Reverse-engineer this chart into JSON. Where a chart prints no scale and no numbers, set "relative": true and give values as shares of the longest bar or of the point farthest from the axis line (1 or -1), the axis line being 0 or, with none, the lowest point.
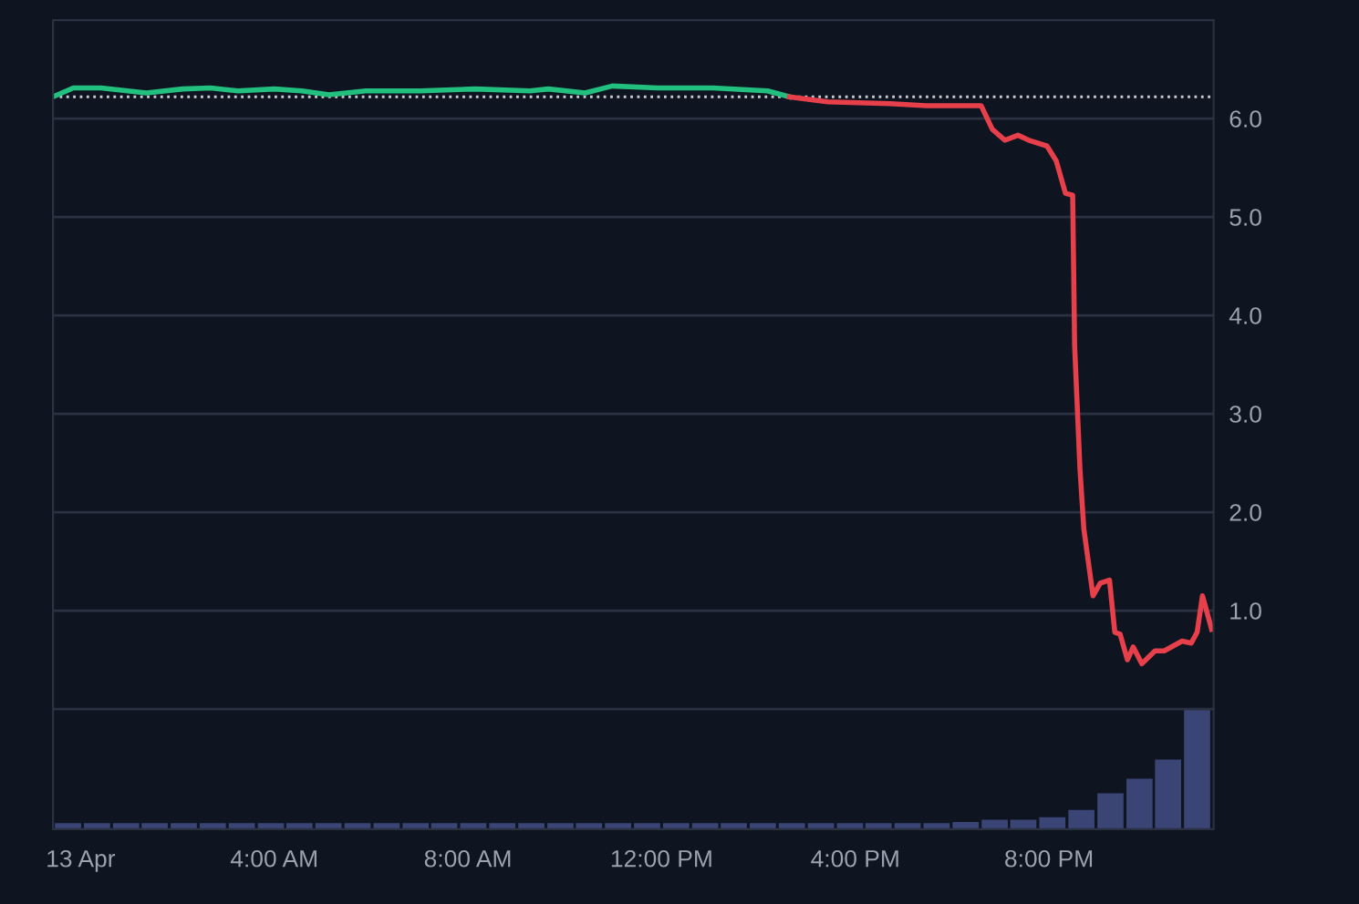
{
  "chart_data": [
    {
      "type": "line",
      "ylim": [
        0,
        7
      ],
      "xlim": [
        -0.57,
        23.4
      ],
      "yticks": [
        {
          "value": 0,
          "label": null
        },
        {
          "value": 1,
          "label": "1.0"
        },
        {
          "value": 2,
          "label": "2.0"
        },
        {
          "value": 3,
          "label": "3.0"
        },
        {
          "value": 4,
          "label": "4.0"
        },
        {
          "value": 5,
          "label": "5.0"
        },
        {
          "value": 6,
          "label": "6.0"
        }
      ],
      "grid": "y",
      "tick_labels": "y",
      "legend": false,
      "ref_lines": [
        {
          "axis": "y",
          "value": 6.22,
          "color": "#c8ccd2",
          "line_style": "dotted"
        }
      ],
      "series": [
        {
          "color": "#22c07f",
          "x": [
            -0.57,
            -0.15,
            0.42,
            1.36,
            2.11,
            2.68,
            3.25,
            4.0,
            4.57,
            5.13,
            5.89,
            7.02,
            8.15,
            9.28,
            9.66,
            10.42,
            10.98,
            11.92,
            13.06,
            14.19,
            14.64
          ],
          "values": [
            6.22,
            6.31,
            6.31,
            6.26,
            6.3,
            6.31,
            6.28,
            6.3,
            6.28,
            6.24,
            6.28,
            6.28,
            6.3,
            6.28,
            6.3,
            6.26,
            6.33,
            6.31,
            6.31,
            6.28,
            6.22
          ]
        },
        {
          "color": "#e8404a",
          "x": [
            14.64,
            15.43,
            16.72,
            17.47,
            18.6,
            18.83,
            19.09,
            19.36,
            19.58,
            19.96,
            20.15,
            20.34,
            20.49,
            20.53,
            20.64,
            20.72,
            20.91,
            21.06,
            21.25,
            21.36,
            21.47,
            21.62,
            21.74,
            21.92,
            22.19,
            22.38,
            22.75,
            22.94,
            23.06,
            23.17,
            23.36
          ],
          "values": [
            6.22,
            6.17,
            6.15,
            6.13,
            6.13,
            5.89,
            5.78,
            5.83,
            5.78,
            5.72,
            5.57,
            5.24,
            5.22,
            3.69,
            2.44,
            1.83,
            1.15,
            1.28,
            1.31,
            0.78,
            0.76,
            0.5,
            0.63,
            0.46,
            0.59,
            0.59,
            0.69,
            0.67,
            0.78,
            1.15,
            0.81
          ]
        }
      ]
    },
    {
      "type": "bar",
      "relative": true,
      "xlim": [
        -0.57,
        23.4
      ],
      "tick_labels": "x",
      "grid": false,
      "xticks": [
        {
          "value": 0,
          "label": "13 Apr"
        },
        {
          "value": 4,
          "label": "4:00 AM"
        },
        {
          "value": 8,
          "label": "8:00 AM"
        },
        {
          "value": 12,
          "label": "12:00 PM"
        },
        {
          "value": 16,
          "label": "4:00 PM"
        },
        {
          "value": 20,
          "label": "8:00 PM"
        }
      ],
      "series": [
        {
          "color": "#3a4575",
          "x": [
            -0.26,
            0.34,
            0.94,
            1.53,
            2.13,
            2.73,
            3.33,
            3.93,
            4.52,
            5.12,
            5.72,
            6.32,
            6.92,
            7.51,
            8.11,
            8.71,
            9.31,
            9.91,
            10.5,
            11.1,
            11.7,
            12.3,
            12.9,
            13.49,
            14.09,
            14.69,
            15.29,
            15.89,
            16.48,
            17.08,
            17.68,
            18.28,
            18.88,
            19.47,
            20.07,
            20.67,
            21.27,
            21.87,
            22.46,
            23.06
          ],
          "values": [
            0.05,
            0.05,
            0.05,
            0.05,
            0.05,
            0.05,
            0.05,
            0.05,
            0.05,
            0.05,
            0.05,
            0.05,
            0.05,
            0.05,
            0.05,
            0.05,
            0.05,
            0.05,
            0.05,
            0.05,
            0.05,
            0.05,
            0.05,
            0.05,
            0.05,
            0.05,
            0.05,
            0.05,
            0.05,
            0.05,
            0.05,
            0.06,
            0.08,
            0.08,
            0.1,
            0.16,
            0.3,
            0.42,
            0.58,
            1.0
          ]
        }
      ]
    }
  ]
}
